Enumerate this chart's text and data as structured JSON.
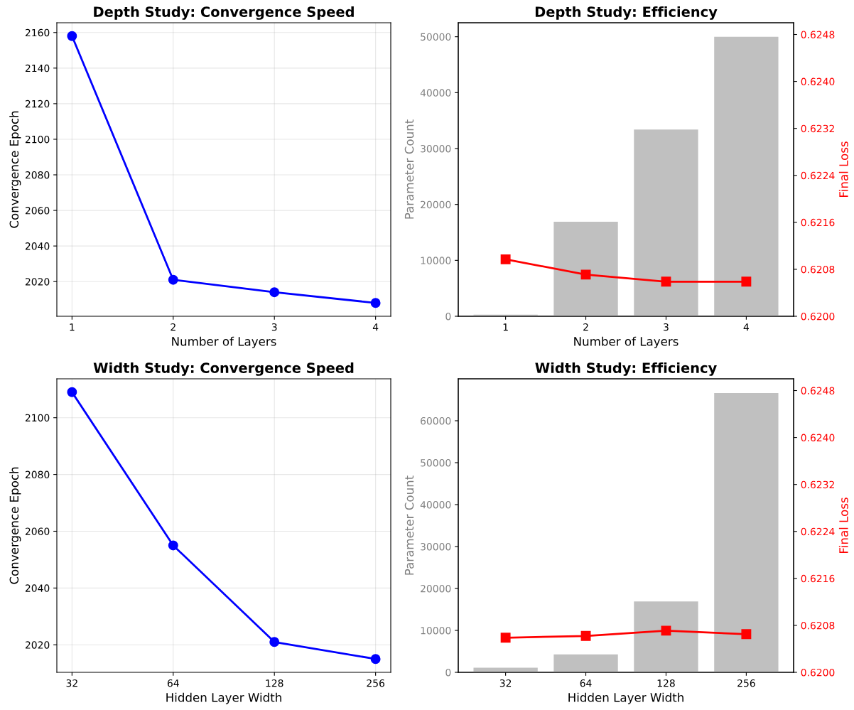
{
  "chart_data": [
    {
      "type": "line",
      "title": "Depth Study: Convergence Speed",
      "xlabel": "Number of Layers",
      "ylabel": "Convergence Epoch",
      "categories": [
        "1",
        "2",
        "3",
        "4"
      ],
      "series": [
        {
          "color": "#0000ff",
          "values": [
            2158,
            2021,
            2014,
            2008
          ]
        }
      ],
      "ylim": [
        2000.5,
        2165.5
      ],
      "yticks": [
        2020,
        2040,
        2060,
        2080,
        2100,
        2120,
        2140,
        2160
      ],
      "grid": true,
      "marker": "circle",
      "line_style": "solid"
    },
    {
      "type": "bar",
      "title": "Depth Study: Efficiency",
      "xlabel": "Number of Layers",
      "ylabel": "Parameter Count",
      "y2label": "Final Loss",
      "categories": [
        "1",
        "2",
        "3",
        "4"
      ],
      "series": [
        {
          "type": "bar",
          "color": "#c0c0c0",
          "values": [
            300,
            16900,
            33400,
            50000
          ]
        },
        {
          "type": "line",
          "axis": "y2",
          "color": "#ff0000",
          "values": [
            0.62097,
            0.62071,
            0.62059,
            0.62059
          ]
        }
      ],
      "ylim": [
        0,
        52500
      ],
      "yticks": [
        0,
        10000,
        20000,
        30000,
        40000,
        50000
      ],
      "y2lim": [
        0.62,
        0.625
      ],
      "y2ticks": [
        {
          "value": 0.62,
          "label": "0.6200"
        },
        {
          "value": 0.6208,
          "label": "0.6208"
        },
        {
          "value": 0.6216,
          "label": "0.6216"
        },
        {
          "value": 0.6224,
          "label": "0.6224"
        },
        {
          "value": 0.6232,
          "label": "0.6232"
        },
        {
          "value": 0.624,
          "label": "0.6240"
        },
        {
          "value": 0.6248,
          "label": "0.6248"
        }
      ],
      "marker": "square",
      "line_style": "solid"
    },
    {
      "type": "line",
      "title": "Width Study: Convergence Speed",
      "xlabel": "Hidden Layer Width",
      "ylabel": "Convergence Epoch",
      "categories": [
        "32",
        "64",
        "128",
        "256"
      ],
      "series": [
        {
          "color": "#0000ff",
          "values": [
            2109,
            2055,
            2021,
            2015
          ]
        }
      ],
      "ylim": [
        2010.3,
        2113.7
      ],
      "yticks": [
        2020,
        2040,
        2060,
        2080,
        2100
      ],
      "grid": true,
      "marker": "circle",
      "line_style": "solid"
    },
    {
      "type": "bar",
      "title": "Width Study: Efficiency",
      "xlabel": "Hidden Layer Width",
      "ylabel": "Parameter Count",
      "y2label": "Final Loss",
      "categories": [
        "32",
        "64",
        "128",
        "256"
      ],
      "series": [
        {
          "type": "bar",
          "color": "#c0c0c0",
          "values": [
            1100,
            4300,
            16900,
            66600
          ]
        },
        {
          "type": "line",
          "axis": "y2",
          "color": "#ff0000",
          "values": [
            0.62059,
            0.62062,
            0.62071,
            0.62065
          ]
        }
      ],
      "ylim": [
        0,
        70000
      ],
      "yticks": [
        0,
        10000,
        20000,
        30000,
        40000,
        50000,
        60000
      ],
      "y2lim": [
        0.62,
        0.625
      ],
      "y2ticks": [
        {
          "value": 0.62,
          "label": "0.6200"
        },
        {
          "value": 0.6208,
          "label": "0.6208"
        },
        {
          "value": 0.6216,
          "label": "0.6216"
        },
        {
          "value": 0.6224,
          "label": "0.6224"
        },
        {
          "value": 0.6232,
          "label": "0.6232"
        },
        {
          "value": 0.624,
          "label": "0.6240"
        },
        {
          "value": 0.6248,
          "label": "0.6248"
        }
      ],
      "marker": "square",
      "line_style": "solid"
    }
  ]
}
